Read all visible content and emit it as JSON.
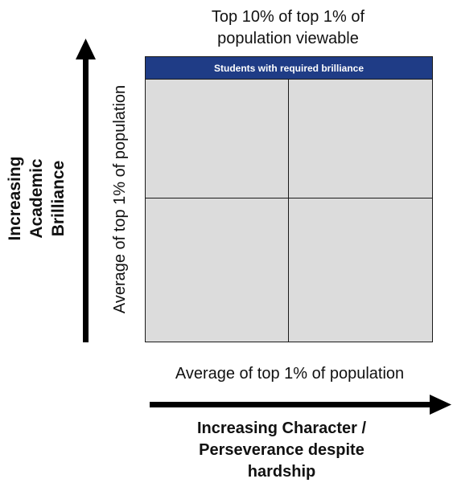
{
  "top_title": {
    "line1": "Top 10% of top 1% of",
    "line2": "population viewable"
  },
  "header_band": {
    "label": "Students with required brilliance",
    "color": "#1f3c86"
  },
  "grid": {
    "fill_color": "#dcdcdc",
    "rows": 2,
    "columns": 2
  },
  "y_inner_label": "Average of top 1% of population",
  "x_inner_label": "Average of top 1% of population",
  "y_axis_title": {
    "line1": "Increasing",
    "line2": "Academic",
    "line3": "Brilliance"
  },
  "x_axis_title": {
    "line1": "Increasing Character /",
    "line2": "Perseverance despite",
    "line3": "hardship"
  },
  "icons": {
    "y_arrow": "arrow-up-icon",
    "x_arrow": "arrow-right-icon"
  }
}
